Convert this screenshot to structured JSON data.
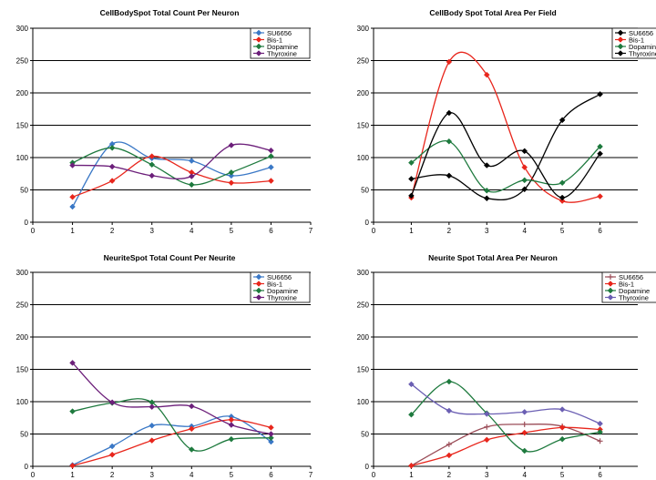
{
  "chart_data": [
    {
      "type": "line",
      "title": "CellBodySpot Total Count Per Neuron",
      "xlim": [
        0,
        7
      ],
      "ylim": [
        0,
        300
      ],
      "x_ticks": [
        0,
        1,
        2,
        3,
        4,
        5,
        6,
        7
      ],
      "y_ticks": [
        0,
        50,
        100,
        150,
        200,
        250,
        300
      ],
      "grid": "horizontal",
      "legend_position": "top-right",
      "x": [
        1,
        2,
        3,
        4,
        5,
        6
      ],
      "series": [
        {
          "name": "SU6656",
          "color": "#3a78c6",
          "marker": "diamond",
          "values": [
            24,
            121,
            99,
            95,
            72,
            85
          ]
        },
        {
          "name": "Bis-1",
          "color": "#e8261c",
          "marker": "diamond",
          "values": [
            39,
            64,
            102,
            77,
            61,
            64
          ]
        },
        {
          "name": "Dopamine",
          "color": "#1e7a3e",
          "marker": "diamond",
          "values": [
            92,
            115,
            89,
            58,
            77,
            102
          ]
        },
        {
          "name": "Thyroxine",
          "color": "#6c1f7a",
          "marker": "diamond",
          "values": [
            88,
            86,
            72,
            71,
            119,
            111
          ]
        }
      ]
    },
    {
      "type": "line",
      "title": "CellBody Spot Total Area Per Field",
      "xlim": [
        0,
        7
      ],
      "ylim": [
        0,
        300
      ],
      "x_ticks": [
        0,
        1,
        2,
        3,
        4,
        5,
        6
      ],
      "y_ticks": [
        0,
        50,
        100,
        150,
        200,
        250,
        300
      ],
      "grid": "horizontal",
      "legend_position": "top-right",
      "x": [
        1,
        2,
        3,
        4,
        5,
        6
      ],
      "series": [
        {
          "name": "SU6656",
          "color": "#000000",
          "marker": "diamond",
          "values": [
            67,
            72,
            37,
            51,
            158,
            198
          ]
        },
        {
          "name": "Bis-1",
          "color": "#e8261c",
          "marker": "diamond",
          "values": [
            38,
            248,
            228,
            85,
            33,
            40
          ]
        },
        {
          "name": "Dopamine",
          "color": "#1e7a3e",
          "marker": "diamond",
          "values": [
            92,
            125,
            49,
            65,
            61,
            117
          ]
        },
        {
          "name": "Thyroxine",
          "color": "#000000",
          "marker": "diamond",
          "values": [
            41,
            169,
            88,
            110,
            38,
            106
          ]
        }
      ]
    },
    {
      "type": "line",
      "title": "NeuriteSpot Total Count Per Neurite",
      "xlim": [
        0,
        7
      ],
      "ylim": [
        0,
        300
      ],
      "x_ticks": [
        0,
        1,
        2,
        3,
        4,
        5,
        6,
        7
      ],
      "y_ticks": [
        0,
        50,
        100,
        150,
        200,
        250,
        300
      ],
      "grid": "horizontal",
      "legend_position": "top-right",
      "x": [
        1,
        2,
        3,
        4,
        5,
        6
      ],
      "series": [
        {
          "name": "SU6656",
          "color": "#3a78c6",
          "marker": "diamond",
          "values": [
            2,
            31,
            63,
            62,
            77,
            38
          ]
        },
        {
          "name": "Bis-1",
          "color": "#e8261c",
          "marker": "diamond",
          "values": [
            1,
            18,
            40,
            58,
            72,
            60
          ]
        },
        {
          "name": "Dopamine",
          "color": "#1e7a3e",
          "marker": "diamond",
          "values": [
            85,
            98,
            99,
            26,
            42,
            44
          ]
        },
        {
          "name": "Thyroxine",
          "color": "#6c1f7a",
          "marker": "diamond",
          "values": [
            160,
            99,
            92,
            93,
            64,
            50
          ]
        }
      ]
    },
    {
      "type": "line",
      "title": "Neurite Spot Total Area Per Neuron",
      "xlim": [
        0,
        7
      ],
      "ylim": [
        0,
        300
      ],
      "x_ticks": [
        0,
        1,
        2,
        3,
        4,
        5,
        6
      ],
      "y_ticks": [
        0,
        50,
        100,
        150,
        200,
        250,
        300
      ],
      "grid": "horizontal",
      "legend_position": "top-right",
      "x": [
        1,
        2,
        3,
        4,
        5,
        6
      ],
      "series": [
        {
          "name": "SU6656",
          "color": "#9b4d58",
          "marker": "plus",
          "values": [
            1,
            34,
            61,
            65,
            62,
            39
          ]
        },
        {
          "name": "Bis-1",
          "color": "#e8261c",
          "marker": "diamond",
          "values": [
            1,
            17,
            41,
            52,
            60,
            57
          ]
        },
        {
          "name": "Dopamine",
          "color": "#1e7a3e",
          "marker": "diamond",
          "values": [
            80,
            131,
            82,
            24,
            42,
            53
          ]
        },
        {
          "name": "Thyroxine",
          "color": "#6b5fb3",
          "marker": "diamond",
          "values": [
            127,
            86,
            81,
            84,
            88,
            66
          ]
        }
      ]
    }
  ]
}
